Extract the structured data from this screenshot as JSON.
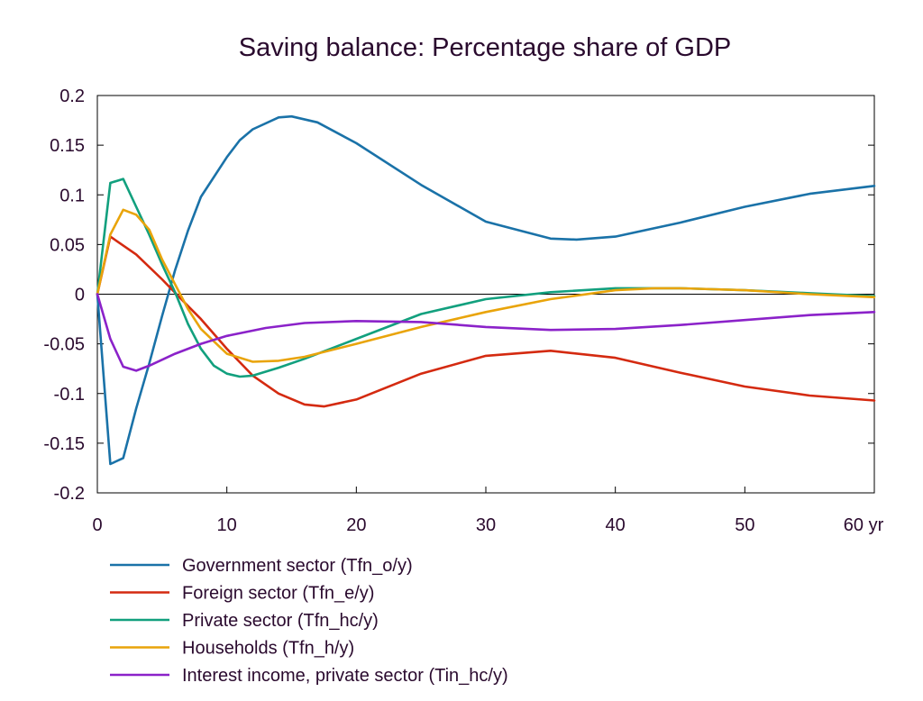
{
  "chart_data": {
    "type": "line",
    "title": "Saving balance: Percentage share of GDP",
    "xlabel": "",
    "ylabel": "",
    "x_unit_label": "yr",
    "xlim": [
      0,
      60
    ],
    "ylim": [
      -0.2,
      0.2
    ],
    "x_ticks": [
      0,
      10,
      20,
      30,
      40,
      50,
      60
    ],
    "x_tick_labels": [
      "0",
      "10",
      "20",
      "30",
      "40",
      "50",
      "60 yr"
    ],
    "y_ticks": [
      0.2,
      0.15,
      0.1,
      0.05,
      0,
      -0.05,
      -0.1,
      -0.15,
      -0.2
    ],
    "y_tick_labels": [
      "0.2",
      "0.15",
      "0.1",
      "0.05",
      "0",
      "-0.05",
      "-0.1",
      "-0.15",
      "-0.2"
    ],
    "grid": false,
    "zero_line": true,
    "legend_position": "bottom-left",
    "series": [
      {
        "name": "Government sector (Tfn_o/y)",
        "color": "#1a72a8",
        "x": [
          0,
          1,
          2,
          3,
          4,
          5,
          6,
          7,
          8,
          10,
          11,
          12,
          14,
          15,
          17,
          20,
          25,
          30,
          35,
          37,
          40,
          45,
          50,
          55,
          60
        ],
        "y": [
          0,
          -0.171,
          -0.165,
          -0.115,
          -0.07,
          -0.022,
          0.024,
          0.064,
          0.098,
          0.138,
          0.155,
          0.166,
          0.178,
          0.179,
          0.173,
          0.152,
          0.11,
          0.073,
          0.056,
          0.055,
          0.058,
          0.072,
          0.088,
          0.101,
          0.109
        ]
      },
      {
        "name": "Foreign sector (Tfn_e/y)",
        "color": "#d42a10",
        "x": [
          0,
          1,
          3,
          5,
          7,
          8,
          10,
          12,
          14,
          16,
          17.5,
          20,
          25,
          30,
          35,
          40,
          45,
          50,
          55,
          60
        ],
        "y": [
          0,
          0.058,
          0.04,
          0.015,
          -0.012,
          -0.025,
          -0.055,
          -0.082,
          -0.1,
          -0.111,
          -0.113,
          -0.106,
          -0.08,
          -0.062,
          -0.057,
          -0.064,
          -0.079,
          -0.093,
          -0.102,
          -0.107
        ]
      },
      {
        "name": "Private sector (Tfn_hc/y)",
        "color": "#12a07e",
        "x": [
          0,
          1,
          2,
          3,
          4,
          5,
          6,
          7,
          8,
          9,
          10,
          11,
          12,
          14,
          16,
          20,
          25,
          30,
          35,
          40,
          42,
          45,
          50,
          55,
          60
        ],
        "y": [
          0,
          0.112,
          0.116,
          0.088,
          0.06,
          0.03,
          0.002,
          -0.03,
          -0.055,
          -0.072,
          -0.08,
          -0.083,
          -0.082,
          -0.074,
          -0.065,
          -0.045,
          -0.02,
          -0.005,
          0.002,
          0.006,
          0.006,
          0.006,
          0.004,
          0.001,
          -0.002
        ]
      },
      {
        "name": "Households (Tfn_h/y)",
        "color": "#e9a40a",
        "x": [
          0,
          1,
          2,
          3,
          4,
          5,
          6,
          7,
          8,
          10,
          12,
          14,
          16,
          20,
          25,
          30,
          35,
          40,
          43,
          45,
          50,
          55,
          60
        ],
        "y": [
          0,
          0.06,
          0.085,
          0.08,
          0.065,
          0.035,
          0.01,
          -0.015,
          -0.035,
          -0.06,
          -0.068,
          -0.067,
          -0.063,
          -0.05,
          -0.033,
          -0.018,
          -0.005,
          0.004,
          0.006,
          0.006,
          0.004,
          0.0,
          -0.003
        ]
      },
      {
        "name": "Interest income, private sector (Tin_hc/y)",
        "color": "#8b22c9",
        "x": [
          0,
          1,
          2,
          3,
          4,
          6,
          8,
          10,
          13,
          16,
          20,
          25,
          30,
          35,
          40,
          45,
          50,
          55,
          60
        ],
        "y": [
          0,
          -0.045,
          -0.073,
          -0.077,
          -0.072,
          -0.06,
          -0.05,
          -0.042,
          -0.034,
          -0.029,
          -0.027,
          -0.028,
          -0.033,
          -0.036,
          -0.035,
          -0.031,
          -0.026,
          -0.021,
          -0.018
        ]
      }
    ]
  }
}
